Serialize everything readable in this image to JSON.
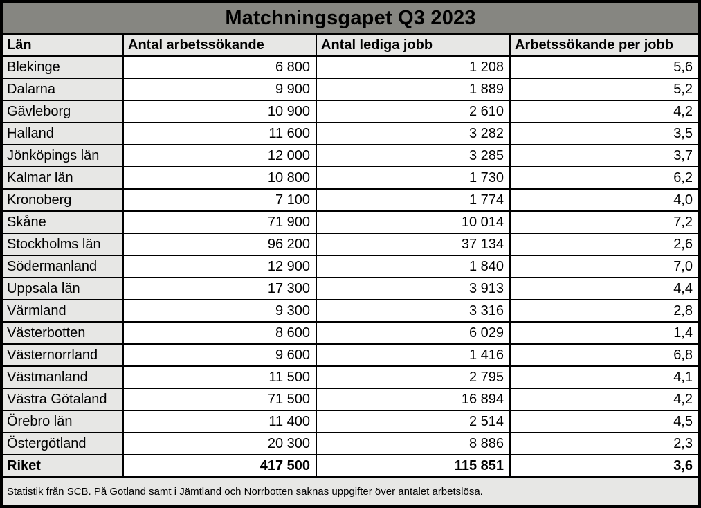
{
  "title": "Matchningsgapet Q3 2023",
  "columns": [
    "Län",
    "Antal arbetssökande",
    "Antal lediga jobb",
    "Arbetssökande per jobb"
  ],
  "rows": [
    {
      "name": "Blekinge",
      "seekers": "6 800",
      "jobs": "1 208",
      "ratio": "5,6"
    },
    {
      "name": "Dalarna",
      "seekers": "9 900",
      "jobs": "1 889",
      "ratio": "5,2"
    },
    {
      "name": "Gävleborg",
      "seekers": "10 900",
      "jobs": "2 610",
      "ratio": "4,2"
    },
    {
      "name": "Halland",
      "seekers": "11 600",
      "jobs": "3 282",
      "ratio": "3,5"
    },
    {
      "name": "Jönköpings län",
      "seekers": "12 000",
      "jobs": "3 285",
      "ratio": "3,7"
    },
    {
      "name": "Kalmar län",
      "seekers": "10 800",
      "jobs": "1 730",
      "ratio": "6,2"
    },
    {
      "name": "Kronoberg",
      "seekers": "7 100",
      "jobs": "1 774",
      "ratio": "4,0"
    },
    {
      "name": "Skåne",
      "seekers": "71 900",
      "jobs": "10 014",
      "ratio": "7,2"
    },
    {
      "name": "Stockholms län",
      "seekers": "96 200",
      "jobs": "37 134",
      "ratio": "2,6"
    },
    {
      "name": "Södermanland",
      "seekers": "12 900",
      "jobs": "1 840",
      "ratio": "7,0"
    },
    {
      "name": "Uppsala län",
      "seekers": "17 300",
      "jobs": "3 913",
      "ratio": "4,4"
    },
    {
      "name": "Värmland",
      "seekers": "9 300",
      "jobs": "3 316",
      "ratio": "2,8"
    },
    {
      "name": "Västerbotten",
      "seekers": "8 600",
      "jobs": "6 029",
      "ratio": "1,4"
    },
    {
      "name": "Västernorrland",
      "seekers": "9 600",
      "jobs": "1 416",
      "ratio": "6,8"
    },
    {
      "name": "Västmanland",
      "seekers": "11 500",
      "jobs": "2 795",
      "ratio": "4,1"
    },
    {
      "name": "Västra Götaland",
      "seekers": "71 500",
      "jobs": "16 894",
      "ratio": "4,2"
    },
    {
      "name": "Örebro län",
      "seekers": "11 400",
      "jobs": "2 514",
      "ratio": "4,5"
    },
    {
      "name": "Östergötland",
      "seekers": "20 300",
      "jobs": "8 886",
      "ratio": "2,3"
    }
  ],
  "total": {
    "name": "Riket",
    "seekers": "417 500",
    "jobs": "115 851",
    "ratio": "3,6"
  },
  "footnote": "Statistik från SCB. På Gotland samt i Jämtland och Norrbotten saknas uppgifter över antalet arbetslösa.",
  "colors": {
    "title_bg": "#868681",
    "band_bg": "#e7e7e5",
    "cell_bg": "#ffffff",
    "border": "#000000",
    "text": "#000000"
  }
}
